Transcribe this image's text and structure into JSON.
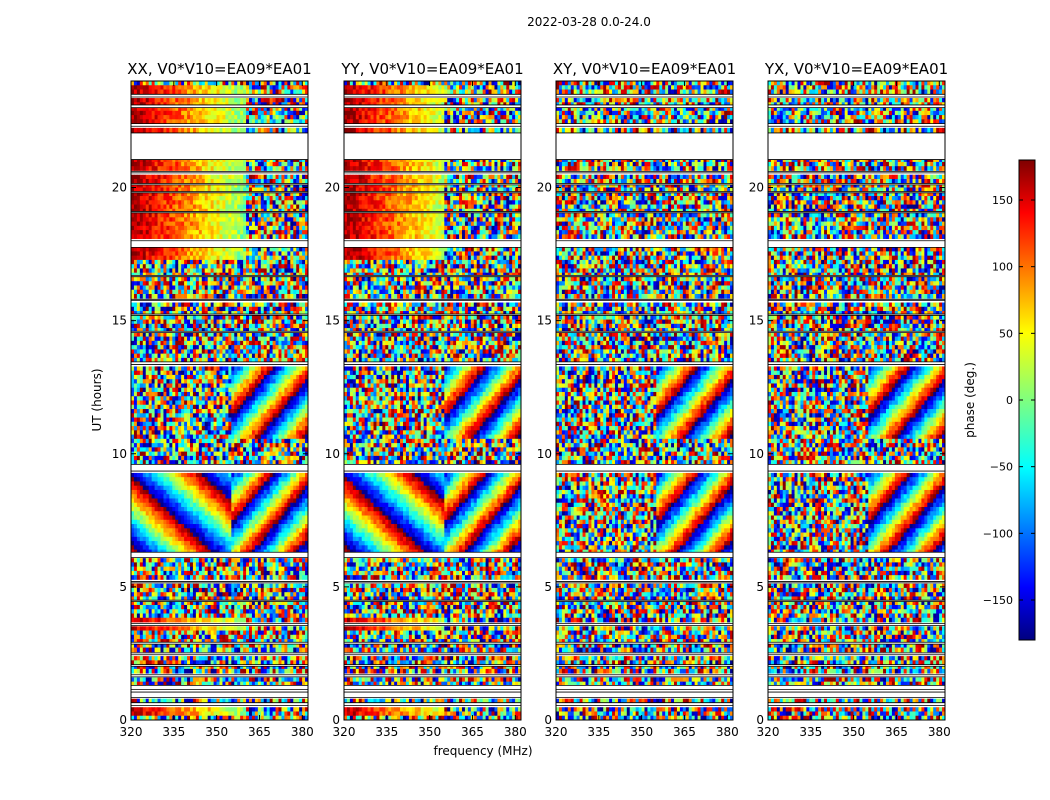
{
  "chart_data": {
    "type": "heatmap",
    "suptitle": "2022-03-28 0.0-24.0",
    "ylabel": "UT (hours)",
    "xlabel": "frequency (MHz)",
    "xlim": [
      320,
      382
    ],
    "ylim": [
      0,
      24
    ],
    "x_ticks": [
      "320",
      "335",
      "350",
      "365",
      "380"
    ],
    "y_ticks": [
      "0",
      "5",
      "10",
      "15",
      "20"
    ],
    "panels": [
      {
        "title": "XX, V0*V10=EA09*EA01",
        "pol": "XX"
      },
      {
        "title": "YY, V0*V10=EA09*EA01",
        "pol": "YY"
      },
      {
        "title": "XY, V0*V10=EA09*EA01",
        "pol": "XY"
      },
      {
        "title": "YX, V0*V10=EA09*EA01",
        "pol": "YX"
      }
    ],
    "flagged_ut_ranges": [
      [
        0.55,
        0.65
      ],
      [
        0.85,
        1.05
      ],
      [
        1.15,
        1.3
      ],
      [
        1.62,
        1.7
      ],
      [
        2.02,
        2.08
      ],
      [
        2.45,
        2.52
      ],
      [
        2.85,
        2.92
      ],
      [
        3.55,
        3.62
      ],
      [
        4.45,
        4.5
      ],
      [
        5.15,
        5.2
      ],
      [
        6.1,
        6.3
      ],
      [
        9.35,
        9.6
      ],
      [
        13.35,
        13.45
      ],
      [
        14.55,
        14.6
      ],
      [
        15.2,
        15.25
      ],
      [
        15.75,
        15.8
      ],
      [
        16.65,
        16.7
      ],
      [
        17.75,
        18.0
      ],
      [
        19.05,
        19.1
      ],
      [
        19.8,
        19.85
      ],
      [
        20.1,
        20.15
      ],
      [
        20.55,
        20.6
      ],
      [
        21.05,
        22.05
      ],
      [
        22.3,
        22.4
      ],
      [
        23.0,
        23.1
      ],
      [
        23.4,
        23.5
      ]
    ],
    "colorbar": {
      "label": "phase (deg.)",
      "range": [
        -180,
        180
      ],
      "ticks": [
        "150",
        "100",
        "50",
        "0",
        "−50",
        "−100",
        "−150"
      ],
      "tick_values": [
        150,
        100,
        50,
        0,
        -50,
        -100,
        -150
      ],
      "colormap": "jet",
      "colors": [
        "#00007f",
        "#0000ff",
        "#00ffff",
        "#7fff7f",
        "#ffff00",
        "#ff0000",
        "#7f0000"
      ]
    }
  }
}
